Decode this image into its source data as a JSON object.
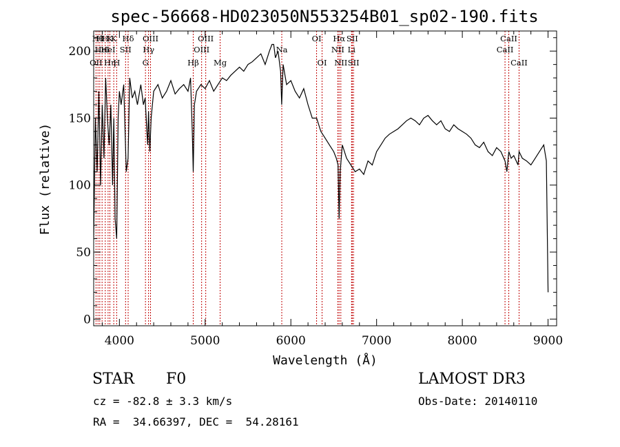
{
  "chart_data": {
    "type": "line",
    "title": "spec-56668-HD023050N553254B01_sp02-190.fits",
    "xlabel": "Wavelength (Å)",
    "ylabel": "Flux (relative)",
    "xlim": [
      3700,
      9100
    ],
    "ylim": [
      -5,
      215
    ],
    "xticks": [
      4000,
      5000,
      6000,
      7000,
      8000,
      9000
    ],
    "yticks": [
      0,
      50,
      100,
      150,
      200
    ],
    "grid": false,
    "series": [
      {
        "color": "#000000",
        "x": [
          3700,
          3720,
          3740,
          3760,
          3780,
          3800,
          3820,
          3840,
          3860,
          3880,
          3900,
          3920,
          3935,
          3950,
          3968,
          3985,
          4000,
          4020,
          4050,
          4080,
          4101,
          4120,
          4150,
          4180,
          4210,
          4250,
          4280,
          4300,
          4320,
          4330,
          4340,
          4355,
          4370,
          4400,
          4450,
          4500,
          4550,
          4600,
          4650,
          4700,
          4750,
          4800,
          4830,
          4850,
          4861,
          4875,
          4900,
          4950,
          5000,
          5050,
          5100,
          5150,
          5200,
          5250,
          5300,
          5350,
          5400,
          5450,
          5500,
          5550,
          5600,
          5650,
          5700,
          5750,
          5780,
          5800,
          5820,
          5850,
          5880,
          5893,
          5910,
          5950,
          6000,
          6050,
          6100,
          6150,
          6200,
          6250,
          6300,
          6350,
          6400,
          6450,
          6500,
          6530,
          6550,
          6563,
          6575,
          6600,
          6650,
          6700,
          6750,
          6800,
          6850,
          6900,
          6950,
          7000,
          7050,
          7100,
          7150,
          7200,
          7250,
          7300,
          7350,
          7400,
          7450,
          7500,
          7550,
          7600,
          7650,
          7700,
          7750,
          7800,
          7850,
          7900,
          7950,
          8000,
          8050,
          8100,
          8150,
          8200,
          8250,
          8300,
          8350,
          8400,
          8450,
          8498,
          8520,
          8542,
          8570,
          8600,
          8650,
          8662,
          8700,
          8750,
          8800,
          8850,
          8900,
          8950,
          8980,
          9000
        ],
        "y": [
          60,
          150,
          110,
          170,
          100,
          160,
          120,
          180,
          150,
          130,
          160,
          100,
          150,
          75,
          60,
          150,
          170,
          160,
          175,
          110,
          120,
          180,
          165,
          170,
          160,
          175,
          160,
          165,
          140,
          130,
          155,
          125,
          150,
          170,
          175,
          165,
          170,
          178,
          168,
          172,
          175,
          170,
          180,
          140,
          110,
          160,
          170,
          175,
          172,
          178,
          170,
          175,
          180,
          178,
          182,
          185,
          188,
          185,
          190,
          192,
          195,
          198,
          190,
          200,
          205,
          205,
          195,
          200,
          185,
          160,
          190,
          175,
          178,
          170,
          165,
          172,
          160,
          150,
          150,
          140,
          135,
          130,
          125,
          120,
          115,
          75,
          110,
          130,
          120,
          115,
          110,
          112,
          108,
          118,
          115,
          125,
          130,
          135,
          138,
          140,
          142,
          145,
          148,
          150,
          148,
          145,
          150,
          152,
          148,
          145,
          148,
          142,
          140,
          145,
          142,
          140,
          138,
          135,
          130,
          128,
          132,
          125,
          122,
          128,
          125,
          118,
          110,
          125,
          120,
          122,
          115,
          125,
          120,
          118,
          115,
          120,
          125,
          130,
          118,
          20
        ]
      }
    ],
    "annotations": [
      {
        "wave": 3727,
        "row": 3,
        "label": "OII"
      },
      {
        "wave": 3750,
        "row": 1,
        "label": "Hθ"
      },
      {
        "wave": 3771,
        "row": 1,
        "label": "H"
      },
      {
        "wave": 3798,
        "row": 2,
        "label": "HeI"
      },
      {
        "wave": 3835,
        "row": 1,
        "label": "H"
      },
      {
        "wave": 3868,
        "row": 2,
        "label": "HeI"
      },
      {
        "wave": 3889,
        "row": 1,
        "label": "K"
      },
      {
        "wave": 3889,
        "row": 3,
        "label": "Hη"
      },
      {
        "wave": 3934,
        "row": 1,
        "label": "K"
      },
      {
        "wave": 3968,
        "row": 3,
        "label": "H"
      },
      {
        "wave": 4072,
        "row": 2,
        "label": "SII"
      },
      {
        "wave": 4102,
        "row": 1,
        "label": "Hδ"
      },
      {
        "wave": 4304,
        "row": 3,
        "label": "G"
      },
      {
        "wave": 4340,
        "row": 2,
        "label": "Hγ"
      },
      {
        "wave": 4363,
        "row": 1,
        "label": "OIII"
      },
      {
        "wave": 4861,
        "row": 3,
        "label": "Hβ"
      },
      {
        "wave": 4959,
        "row": 2,
        "label": "OIII"
      },
      {
        "wave": 5007,
        "row": 1,
        "label": "OIII"
      },
      {
        "wave": 5175,
        "row": 3,
        "label": "Mg"
      },
      {
        "wave": 5894,
        "row": 2,
        "label": "Na"
      },
      {
        "wave": 6300,
        "row": 1,
        "label": "OI"
      },
      {
        "wave": 6364,
        "row": 3,
        "label": "OI"
      },
      {
        "wave": 6548,
        "row": 2,
        "label": "NII"
      },
      {
        "wave": 6563,
        "row": 1,
        "label": "Hα"
      },
      {
        "wave": 6583,
        "row": 3,
        "label": "NII"
      },
      {
        "wave": 6708,
        "row": 2,
        "label": "Li"
      },
      {
        "wave": 6716,
        "row": 1,
        "label": "SII"
      },
      {
        "wave": 6731,
        "row": 3,
        "label": "SII"
      },
      {
        "wave": 8498,
        "row": 2,
        "label": "CaII"
      },
      {
        "wave": 8542,
        "row": 1,
        "label": "CaII"
      },
      {
        "wave": 8662,
        "row": 3,
        "label": "CaII"
      }
    ]
  },
  "info": {
    "object_class": "STAR",
    "subclass": "F0",
    "survey": "LAMOST DR3",
    "redshift": "cz = -82.8 ± 3.3 km/s",
    "obs_date": "Obs-Date: 20140110",
    "coords": "RA =  34.66397, DEC =  54.28161"
  }
}
